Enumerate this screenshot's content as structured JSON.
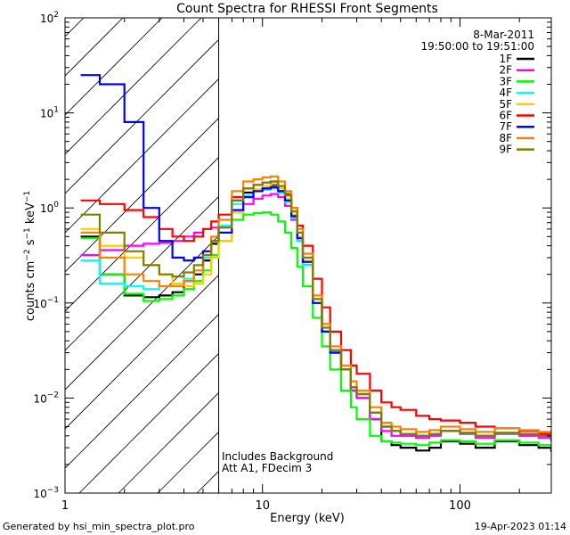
{
  "chart_data": {
    "type": "line",
    "title": "Count Spectra for RHESSI Front Segments",
    "xlabel": "Energy (keV)",
    "ylabel": "counts cm^-2 s^-1 keV^-1",
    "ylabel_parts": {
      "base": "counts cm",
      "e1": "−2",
      "mid1": " s",
      "e2": "−1",
      "mid2": " keV",
      "e3": "−1"
    },
    "xscale": "log",
    "yscale": "log",
    "xlim": [
      1,
      290
    ],
    "ylim": [
      0.001,
      100
    ],
    "x_ticks": [
      {
        "v": 1,
        "label": "1"
      },
      {
        "v": 10,
        "label": "10"
      },
      {
        "v": 100,
        "label": "100"
      }
    ],
    "y_ticks": [
      {
        "v": 0.001,
        "b": "10",
        "e": "−3"
      },
      {
        "v": 0.01,
        "b": "10",
        "e": "−2"
      },
      {
        "v": 0.1,
        "b": "10",
        "e": "−1"
      },
      {
        "v": 1,
        "b": "10",
        "e": "0"
      },
      {
        "v": 10,
        "b": "10",
        "e": "1"
      },
      {
        "v": 100,
        "b": "10",
        "e": "2"
      }
    ],
    "excluded_region": {
      "from": 1,
      "to": 6,
      "style": "hatched"
    },
    "date_text": "8-Mar-2011",
    "time_range_text": "19:50:00 to 19:51:00",
    "annotations": [
      "Includes Background",
      "Att A1, FDecim 3"
    ],
    "series": [
      {
        "name": "1F",
        "color": "#000000",
        "x": [
          1.2,
          1.5,
          2,
          2.5,
          3,
          3.5,
          4,
          4.5,
          5,
          5.5,
          6,
          7,
          8,
          9,
          10,
          11,
          12,
          13,
          14,
          15,
          16,
          18,
          20,
          22,
          25,
          28,
          30,
          35,
          40,
          45,
          50,
          60,
          70,
          80,
          100,
          120,
          150,
          200,
          250,
          290
        ],
        "y": [
          0.5,
          0.2,
          0.12,
          0.115,
          0.12,
          0.13,
          0.17,
          0.2,
          0.28,
          0.42,
          0.65,
          1.2,
          1.45,
          1.55,
          1.6,
          1.75,
          1.5,
          1.2,
          0.8,
          0.45,
          0.25,
          0.1,
          0.05,
          0.03,
          0.02,
          0.012,
          0.01,
          0.006,
          0.0035,
          0.0032,
          0.003,
          0.0028,
          0.003,
          0.0035,
          0.0033,
          0.003,
          0.0035,
          0.0032,
          0.003,
          0.0027
        ]
      },
      {
        "name": "2F",
        "color": "#ff00ff",
        "x": [
          1.2,
          1.5,
          2,
          2.5,
          3,
          3.5,
          4,
          4.5,
          5,
          5.5,
          6,
          7,
          8,
          9,
          10,
          11,
          12,
          13,
          14,
          15,
          16,
          18,
          20,
          22,
          25,
          28,
          30,
          35,
          40,
          45,
          50,
          60,
          70,
          80,
          100,
          120,
          150,
          200,
          250,
          290
        ],
        "y": [
          0.32,
          0.36,
          0.4,
          0.42,
          0.43,
          0.45,
          0.5,
          0.55,
          0.6,
          0.62,
          0.65,
          0.9,
          1.1,
          1.25,
          1.35,
          1.4,
          1.3,
          1.05,
          0.75,
          0.45,
          0.25,
          0.1,
          0.05,
          0.03,
          0.02,
          0.012,
          0.01,
          0.006,
          0.0045,
          0.004,
          0.004,
          0.0038,
          0.004,
          0.0045,
          0.0042,
          0.0038,
          0.0042,
          0.004,
          0.0038,
          0.0035
        ]
      },
      {
        "name": "3F",
        "color": "#00ff00",
        "x": [
          1.2,
          1.5,
          2,
          2.5,
          3,
          3.5,
          4,
          4.5,
          5,
          5.5,
          6,
          7,
          8,
          9,
          10,
          11,
          12,
          13,
          14,
          15,
          16,
          18,
          20,
          22,
          25,
          28,
          30,
          35,
          40,
          45,
          50,
          60,
          70,
          80,
          100,
          120,
          150,
          200,
          250,
          290
        ],
        "y": [
          0.48,
          0.2,
          0.125,
          0.105,
          0.11,
          0.12,
          0.14,
          0.17,
          0.22,
          0.32,
          0.45,
          0.75,
          0.85,
          0.88,
          0.9,
          0.85,
          0.72,
          0.55,
          0.38,
          0.24,
          0.15,
          0.07,
          0.035,
          0.02,
          0.012,
          0.008,
          0.006,
          0.004,
          0.0035,
          0.0034,
          0.0033,
          0.0032,
          0.0034,
          0.0036,
          0.0035,
          0.0033,
          0.0036,
          0.0034,
          0.0032,
          0.003
        ]
      },
      {
        "name": "4F",
        "color": "#00ffff",
        "x": [
          1.2,
          1.5,
          2,
          2.5,
          3,
          3.5,
          4,
          4.5,
          5,
          5.5,
          6,
          7,
          8,
          9,
          10,
          11,
          12,
          13,
          14,
          15,
          16,
          18,
          20,
          22,
          25,
          28,
          30,
          35,
          40,
          45,
          50,
          60,
          70,
          80,
          100,
          120,
          150,
          200,
          250,
          290
        ],
        "y": [
          0.28,
          0.16,
          0.15,
          0.14,
          0.15,
          0.16,
          0.18,
          0.22,
          0.3,
          0.45,
          0.65,
          1.1,
          1.35,
          1.5,
          1.55,
          1.6,
          1.45,
          1.15,
          0.78,
          0.45,
          0.25,
          0.1,
          0.05,
          0.03,
          0.02,
          0.013,
          0.011,
          0.007,
          0.005,
          0.0045,
          0.0042,
          0.004,
          0.0042,
          0.0045,
          0.0043,
          0.004,
          0.0043,
          0.0042,
          0.004,
          0.0036
        ]
      },
      {
        "name": "5F",
        "color": "#ffcc00",
        "x": [
          1.2,
          1.5,
          2,
          2.5,
          3,
          3.5,
          4,
          4.5,
          5,
          5.5,
          6,
          7,
          8,
          9,
          10,
          11,
          12,
          13,
          14,
          15,
          16,
          18,
          20,
          22,
          25,
          28,
          30,
          35,
          40,
          45,
          50,
          60,
          70,
          80,
          100,
          120,
          150,
          200,
          250,
          290
        ],
        "y": [
          0.6,
          0.4,
          0.3,
          0.25,
          0.2,
          0.16,
          0.15,
          0.16,
          0.2,
          0.3,
          0.45,
          0.9,
          1.3,
          1.55,
          1.7,
          1.8,
          1.6,
          1.25,
          0.85,
          0.5,
          0.28,
          0.11,
          0.055,
          0.032,
          0.02,
          0.013,
          0.011,
          0.007,
          0.005,
          0.0045,
          0.0042,
          0.004,
          0.0042,
          0.0045,
          0.0043,
          0.004,
          0.0043,
          0.0042,
          0.004,
          0.0036
        ]
      },
      {
        "name": "6F",
        "color": "#ff0000",
        "x": [
          1.2,
          1.5,
          2,
          2.5,
          3,
          3.5,
          4,
          4.5,
          5,
          5.5,
          6,
          7,
          8,
          9,
          10,
          11,
          12,
          13,
          14,
          15,
          16,
          18,
          20,
          22,
          25,
          28,
          30,
          35,
          40,
          45,
          50,
          60,
          70,
          80,
          100,
          120,
          150,
          200,
          250,
          290
        ],
        "y": [
          1.2,
          1.1,
          0.95,
          0.8,
          0.6,
          0.5,
          0.45,
          0.5,
          0.6,
          0.72,
          0.85,
          1.3,
          1.6,
          1.75,
          1.85,
          1.9,
          1.7,
          1.4,
          1.0,
          0.65,
          0.4,
          0.18,
          0.09,
          0.05,
          0.032,
          0.022,
          0.018,
          0.012,
          0.009,
          0.008,
          0.0075,
          0.0065,
          0.006,
          0.0058,
          0.0055,
          0.005,
          0.0048,
          0.0045,
          0.0042,
          0.0038
        ]
      },
      {
        "name": "7F",
        "color": "#0000ff",
        "x": [
          1.2,
          1.5,
          2,
          2.5,
          3,
          3.5,
          4,
          4.5,
          5,
          5.5,
          6,
          7,
          8,
          9,
          10,
          11,
          12,
          13,
          14,
          15,
          16,
          18,
          20,
          22,
          25,
          28,
          30,
          35,
          40,
          45,
          50,
          60,
          70,
          80,
          100,
          120,
          150,
          200,
          250,
          290
        ],
        "y": [
          25,
          20,
          8,
          1.0,
          0.45,
          0.3,
          0.28,
          0.3,
          0.35,
          0.45,
          0.55,
          0.95,
          1.3,
          1.5,
          1.6,
          1.65,
          1.5,
          1.2,
          0.82,
          0.48,
          0.27,
          0.1,
          0.05,
          0.03,
          0.02,
          0.013,
          0.011,
          0.007,
          0.005,
          0.0045,
          0.0042,
          0.004,
          0.0042,
          0.0045,
          0.0043,
          0.004,
          0.0043,
          0.0042,
          0.004,
          0.0036
        ]
      },
      {
        "name": "8F",
        "color": "#ff8000",
        "x": [
          1.2,
          1.5,
          2,
          2.5,
          3,
          3.5,
          4,
          4.5,
          5,
          5.5,
          6,
          7,
          8,
          9,
          10,
          11,
          12,
          13,
          14,
          15,
          16,
          18,
          20,
          22,
          25,
          28,
          30,
          35,
          40,
          45,
          50,
          60,
          70,
          80,
          100,
          120,
          150,
          200,
          250,
          290
        ],
        "y": [
          0.55,
          0.3,
          0.2,
          0.17,
          0.15,
          0.15,
          0.17,
          0.22,
          0.32,
          0.5,
          0.75,
          1.5,
          1.9,
          2.0,
          2.1,
          2.15,
          1.9,
          1.5,
          1.0,
          0.6,
          0.33,
          0.12,
          0.06,
          0.035,
          0.022,
          0.015,
          0.012,
          0.008,
          0.0055,
          0.005,
          0.0047,
          0.0044,
          0.0046,
          0.005,
          0.0047,
          0.0044,
          0.0048,
          0.0046,
          0.0044,
          0.004
        ]
      },
      {
        "name": "9F",
        "color": "#808000",
        "x": [
          1.2,
          1.5,
          2,
          2.5,
          3,
          3.5,
          4,
          4.5,
          5,
          5.5,
          6,
          7,
          8,
          9,
          10,
          11,
          12,
          13,
          14,
          15,
          16,
          18,
          20,
          22,
          25,
          28,
          30,
          35,
          40,
          45,
          50,
          60,
          70,
          80,
          100,
          120,
          150,
          200,
          250,
          290
        ],
        "y": [
          0.85,
          0.55,
          0.35,
          0.25,
          0.2,
          0.19,
          0.21,
          0.25,
          0.32,
          0.45,
          0.62,
          1.2,
          1.6,
          1.75,
          1.85,
          1.9,
          1.7,
          1.35,
          0.92,
          0.55,
          0.3,
          0.11,
          0.055,
          0.032,
          0.02,
          0.013,
          0.011,
          0.007,
          0.005,
          0.0045,
          0.0042,
          0.004,
          0.0042,
          0.0045,
          0.0043,
          0.004,
          0.0043,
          0.0042,
          0.004,
          0.0036
        ]
      }
    ]
  },
  "footer": {
    "left": "Generated by hsi_min_spectra_plot.pro",
    "right": "19-Apr-2023 01:14"
  }
}
